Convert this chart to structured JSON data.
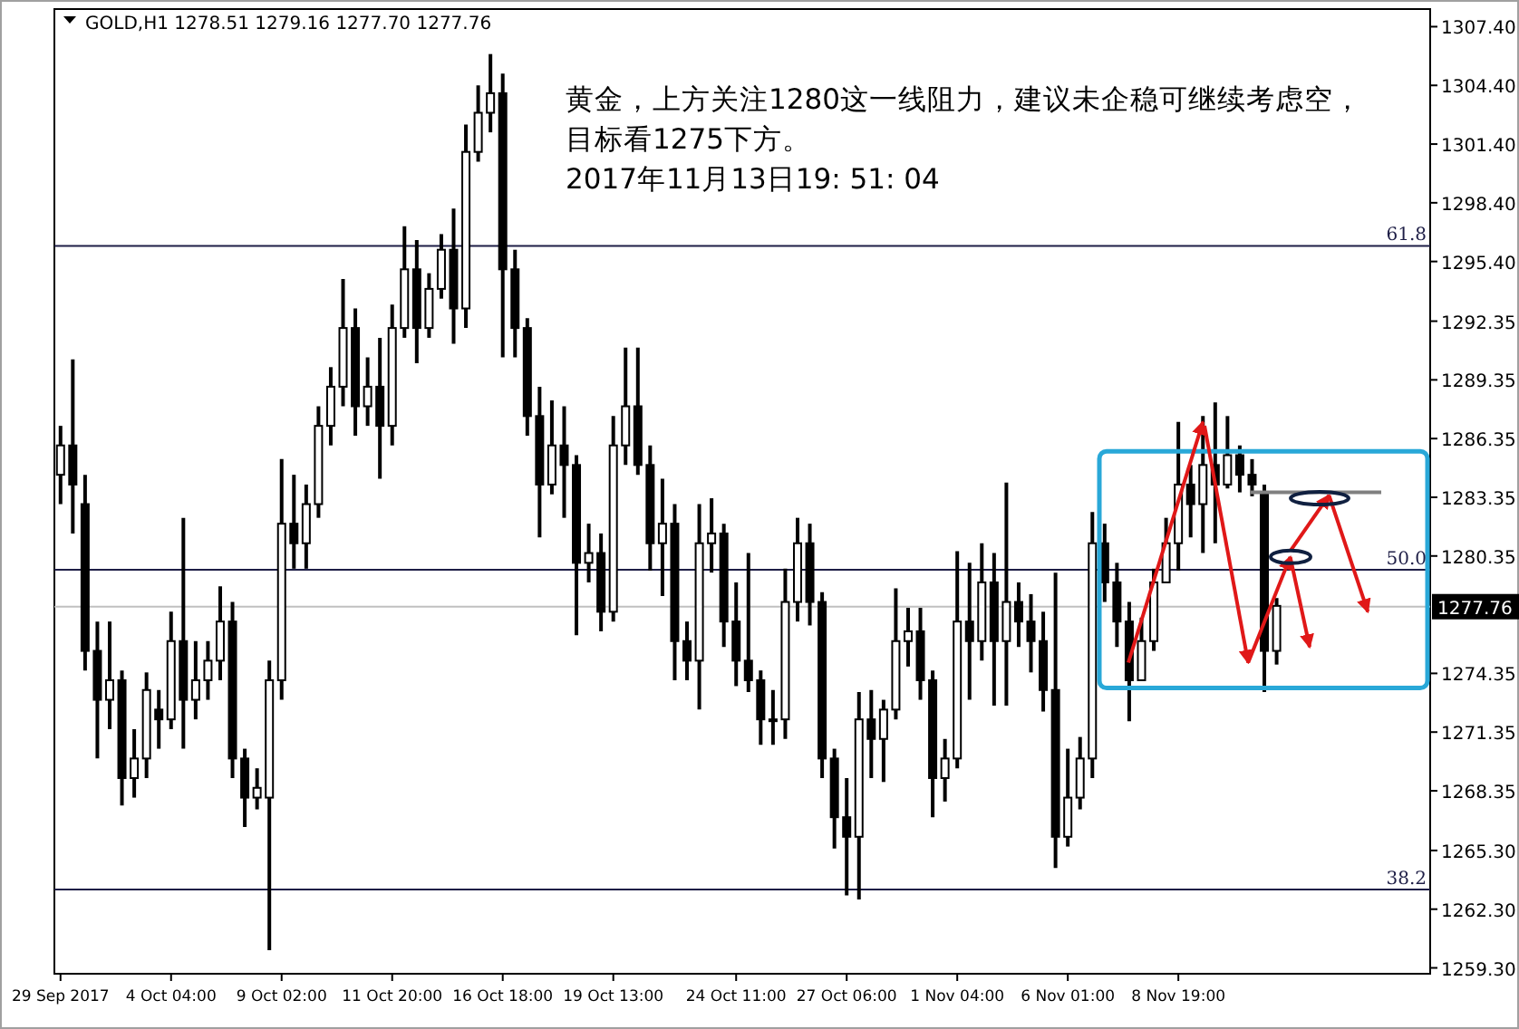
{
  "chart_data": {
    "type": "candlestick",
    "title": "黄金，上方关注1280这一线阻力，建议未企稳可继续考虑空，目标看1275下方。",
    "subtitle": "2017年11月13日19: 51: 04",
    "categories": [
      "29 Sep 2017",
      null,
      null,
      null,
      null,
      null,
      null,
      null,
      null,
      "4 Oct 04:00",
      null,
      null,
      null,
      null,
      null,
      null,
      null,
      null,
      "9 Oct 02:00",
      null,
      null,
      null,
      null,
      null,
      null,
      null,
      null,
      "11 Oct 20:00",
      null,
      null,
      null,
      null,
      null,
      null,
      null,
      null,
      "16 Oct 18:00",
      null,
      null,
      null,
      null,
      null,
      null,
      null,
      null,
      "19 Oct 13:00",
      null,
      null,
      null,
      null,
      null,
      null,
      null,
      null,
      null,
      "24 Oct 11:00",
      null,
      null,
      null,
      null,
      null,
      null,
      null,
      null,
      "27 Oct 06:00",
      null,
      null,
      null,
      null,
      null,
      null,
      null,
      null,
      "1 Nov 04:00",
      null,
      null,
      null,
      null,
      null,
      null,
      null,
      null,
      "6 Nov 01:00",
      null,
      null,
      null,
      null,
      null,
      null,
      null,
      null,
      "8 Nov 19:00",
      null,
      null,
      null,
      null,
      null,
      null,
      null,
      null,
      null,
      null,
      null,
      null,
      null,
      null,
      null,
      null,
      null,
      null,
      null,
      null
    ],
    "ohlc": [
      [
        1284.5,
        1287,
        1283,
        1286
      ],
      [
        1286,
        1290.4,
        1281.5,
        1284
      ],
      [
        1283,
        1284.5,
        1274.5,
        1275.5
      ],
      [
        1275.5,
        1277,
        1270,
        1273
      ],
      [
        1273,
        1277,
        1271.5,
        1274
      ],
      [
        1274,
        1274.5,
        1267.6,
        1269
      ],
      [
        1269,
        1271.5,
        1268,
        1270
      ],
      [
        1270,
        1274.4,
        1269,
        1273.5
      ],
      [
        1272.5,
        1273.5,
        1270.5,
        1272
      ],
      [
        1272,
        1277.5,
        1271.5,
        1276
      ],
      [
        1276,
        1282.3,
        1270.5,
        1273
      ],
      [
        1273,
        1276,
        1272,
        1274
      ],
      [
        1274,
        1276,
        1273,
        1275
      ],
      [
        1275,
        1278.8,
        1274,
        1277
      ],
      [
        1277,
        1278,
        1269,
        1270
      ],
      [
        1270,
        1270.5,
        1266.5,
        1268
      ],
      [
        1268,
        1269.5,
        1267.4,
        1268.5
      ],
      [
        1268,
        1275,
        1260.2,
        1274
      ],
      [
        1274,
        1285.3,
        1273,
        1282
      ],
      [
        1282,
        1284.5,
        1279.7,
        1281
      ],
      [
        1281,
        1284,
        1279.7,
        1283
      ],
      [
        1283,
        1288,
        1282.3,
        1287
      ],
      [
        1287,
        1290,
        1286,
        1289
      ],
      [
        1289,
        1294.5,
        1288,
        1292
      ],
      [
        1292,
        1293,
        1286.5,
        1288
      ],
      [
        1288,
        1290.5,
        1287,
        1289
      ],
      [
        1289,
        1291.5,
        1284.3,
        1287
      ],
      [
        1287,
        1293.2,
        1286,
        1292
      ],
      [
        1292,
        1297.2,
        1291.5,
        1295
      ],
      [
        1295,
        1296.5,
        1290.2,
        1292
      ],
      [
        1292,
        1294.8,
        1291.5,
        1294
      ],
      [
        1294,
        1296.8,
        1293.5,
        1296
      ],
      [
        1296,
        1298.1,
        1291.2,
        1293
      ],
      [
        1293,
        1302.4,
        1292,
        1301
      ],
      [
        1301,
        1304.4,
        1300.5,
        1303
      ],
      [
        1303,
        1306,
        1302,
        1304
      ],
      [
        1304,
        1305,
        1290.5,
        1295
      ],
      [
        1295,
        1296,
        1290.5,
        1292
      ],
      [
        1292,
        1292.5,
        1286.5,
        1287.5
      ],
      [
        1287.5,
        1289,
        1281.3,
        1284
      ],
      [
        1284,
        1288.3,
        1283.5,
        1286
      ],
      [
        1286,
        1288,
        1282.3,
        1285
      ],
      [
        1285,
        1285.5,
        1276.3,
        1280
      ],
      [
        1280,
        1282,
        1279,
        1280.5
      ],
      [
        1280.5,
        1281.5,
        1276.5,
        1277.5
      ],
      [
        1277.5,
        1287.5,
        1277,
        1286
      ],
      [
        1286,
        1291,
        1285,
        1288
      ],
      [
        1288,
        1291,
        1284.5,
        1285
      ],
      [
        1285,
        1286,
        1279.6,
        1281
      ],
      [
        1281,
        1284.3,
        1278.3,
        1282
      ],
      [
        1282,
        1283,
        1274,
        1276
      ],
      [
        1276,
        1277,
        1274,
        1275
      ],
      [
        1275,
        1283,
        1272.5,
        1281
      ],
      [
        1281,
        1283.3,
        1279.5,
        1281.5
      ],
      [
        1281.5,
        1282,
        1275.7,
        1277
      ],
      [
        1277,
        1279,
        1273.7,
        1275
      ],
      [
        1275,
        1280.5,
        1273.4,
        1274
      ],
      [
        1274,
        1274.5,
        1270.7,
        1272
      ],
      [
        1272,
        1273.5,
        1270.7,
        1272
      ],
      [
        1272,
        1279.7,
        1271,
        1278
      ],
      [
        1278,
        1282.3,
        1277,
        1281
      ],
      [
        1281,
        1282,
        1276.8,
        1278
      ],
      [
        1278,
        1278.5,
        1269,
        1270
      ],
      [
        1270,
        1270.5,
        1265.4,
        1267
      ],
      [
        1267,
        1269,
        1263,
        1266
      ],
      [
        1266,
        1273.4,
        1262.8,
        1272
      ],
      [
        1272,
        1273.5,
        1269,
        1271
      ],
      [
        1271,
        1273,
        1268.8,
        1272.5
      ],
      [
        1272.5,
        1278.7,
        1272,
        1276
      ],
      [
        1276,
        1277.7,
        1274.7,
        1276.5
      ],
      [
        1276.5,
        1277.7,
        1273,
        1274
      ],
      [
        1274,
        1274.5,
        1267,
        1269
      ],
      [
        1269,
        1271,
        1267.8,
        1270
      ],
      [
        1270,
        1280.6,
        1269.5,
        1277
      ],
      [
        1277,
        1280,
        1273,
        1276
      ],
      [
        1276,
        1281,
        1275,
        1279
      ],
      [
        1279,
        1280.5,
        1272.7,
        1276
      ],
      [
        1276,
        1284.1,
        1272.7,
        1278
      ],
      [
        1278,
        1279,
        1275.7,
        1277
      ],
      [
        1277,
        1278.4,
        1274.4,
        1276
      ],
      [
        1276,
        1277.5,
        1272.4,
        1273.5
      ],
      [
        1273.5,
        1279.5,
        1264.4,
        1266
      ],
      [
        1266,
        1270.5,
        1265.5,
        1268
      ],
      [
        1268,
        1271.1,
        1267.4,
        1270
      ],
      [
        1270,
        1282.6,
        1269,
        1281
      ],
      [
        1281,
        1282,
        1278,
        1279
      ],
      [
        1279,
        1280,
        1275.7,
        1277
      ],
      [
        1277,
        1278,
        1271.9,
        1274
      ],
      [
        1274,
        1277.2,
        1274,
        1276
      ],
      [
        1276,
        1279.7,
        1275.5,
        1279
      ],
      [
        1279,
        1282.3,
        1279,
        1281
      ],
      [
        1281,
        1287.2,
        1279.6,
        1284
      ],
      [
        1284,
        1285,
        1281.3,
        1283
      ],
      [
        1283,
        1287.5,
        1280.5,
        1285
      ],
      [
        1285,
        1288.2,
        1281,
        1284
      ],
      [
        1284,
        1287.5,
        1283.8,
        1285.5
      ],
      [
        1285.5,
        1286,
        1283.6,
        1284.5
      ],
      [
        1284.5,
        1285.3,
        1283.4,
        1284
      ],
      [
        1283.5,
        1284,
        1273.4,
        1275.5
      ],
      [
        1275.5,
        1278.2,
        1274.8,
        1277.8
      ],
      null,
      null,
      null,
      null,
      null,
      null,
      null,
      null,
      null,
      null,
      null,
      null
    ],
    "color": "#000000",
    "ylim": [
      1259.0,
      1308.3
    ],
    "yticks": [
      {
        "value": 1307.4,
        "label": "1307.40"
      },
      {
        "value": 1304.4,
        "label": "1304.40"
      },
      {
        "value": 1301.4,
        "label": "1301.40"
      },
      {
        "value": 1298.4,
        "label": "1298.40"
      },
      {
        "value": 1295.4,
        "label": "1295.40"
      },
      {
        "value": 1292.35,
        "label": "1292.35"
      },
      {
        "value": 1289.35,
        "label": "1289.35"
      },
      {
        "value": 1286.35,
        "label": "1286.35"
      },
      {
        "value": 1283.35,
        "label": "1283.35"
      },
      {
        "value": 1280.35,
        "label": "1280.35"
      },
      {
        "value": 1274.35,
        "label": "1274.35"
      },
      {
        "value": 1271.35,
        "label": "1271.35"
      },
      {
        "value": 1268.35,
        "label": "1268.35"
      },
      {
        "value": 1265.3,
        "label": "1265.30"
      },
      {
        "value": 1262.3,
        "label": "1262.30"
      },
      {
        "value": 1259.3,
        "label": "1259.30"
      }
    ],
    "annotations": [
      "GOLD,H1  1278.51 1279.16 1277.70 1277.76",
      {
        "text": "61.8",
        "y": 1296.2
      },
      {
        "text": "50.0",
        "y": 1279.65
      },
      {
        "text": "38.2",
        "y": 1263.3
      }
    ],
    "ref_lines": [
      {
        "axis": "y",
        "value": 1296.2,
        "color": "#1e1e46"
      },
      {
        "axis": "y",
        "value": 1279.65,
        "color": "#1e1e46"
      },
      {
        "axis": "y",
        "value": 1263.3,
        "color": "#1e1e46"
      },
      {
        "axis": "y",
        "value": 1277.76,
        "label": "1277.76",
        "color": "#c0c0c0"
      }
    ]
  }
}
